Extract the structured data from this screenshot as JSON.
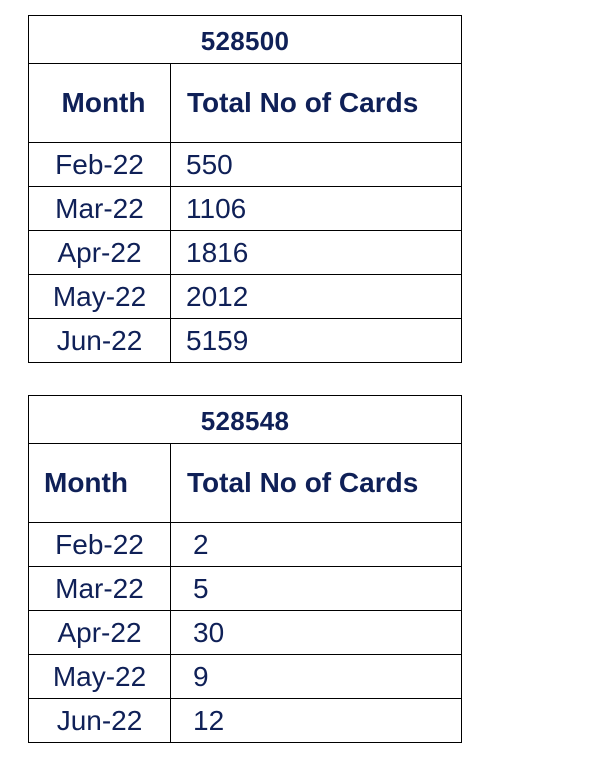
{
  "tables": [
    {
      "code": "528500",
      "headers": {
        "month": "Month",
        "total": "Total No of Cards"
      },
      "rows": [
        {
          "month": "Feb-22",
          "total": "550"
        },
        {
          "month": "Mar-22",
          "total": "1106"
        },
        {
          "month": "Apr-22",
          "total": "1816"
        },
        {
          "month": "May-22",
          "total": "2012"
        },
        {
          "month": "Jun-22",
          "total": "5159"
        }
      ]
    },
    {
      "code": "528548",
      "headers": {
        "month": "Month",
        "total": "Total No of Cards"
      },
      "rows": [
        {
          "month": "Feb-22",
          "total": "2"
        },
        {
          "month": "Mar-22",
          "total": "5"
        },
        {
          "month": "Apr-22",
          "total": "30"
        },
        {
          "month": "May-22",
          "total": "9"
        },
        {
          "month": "Jun-22",
          "total": "12"
        }
      ]
    }
  ]
}
